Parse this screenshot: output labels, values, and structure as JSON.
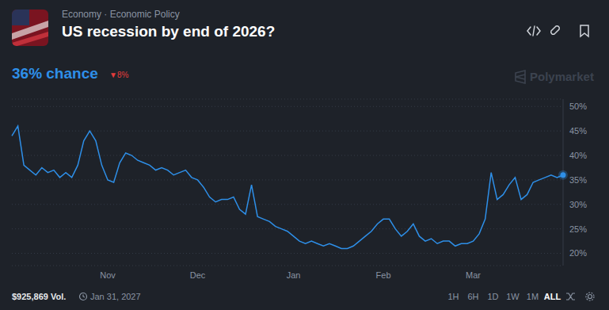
{
  "chart_data": {
    "type": "line",
    "title": "US recession by end of 2026?",
    "subtitle": "Economy · Economic Policy",
    "categories": [
      null,
      null,
      null,
      null,
      null,
      null,
      null,
      null,
      null,
      null,
      null,
      null,
      null,
      null,
      null,
      null,
      "Nov",
      null,
      null,
      null,
      null,
      null,
      null,
      null,
      null,
      null,
      null,
      null,
      null,
      null,
      null,
      "Dec",
      null,
      null,
      null,
      null,
      null,
      null,
      null,
      null,
      null,
      null,
      null,
      null,
      null,
      null,
      null,
      "Jan",
      null,
      null,
      null,
      null,
      null,
      null,
      null,
      null,
      null,
      null,
      null,
      null,
      null,
      null,
      "Feb",
      null,
      null,
      null,
      null,
      null,
      null,
      null,
      null,
      null,
      null,
      null,
      null,
      null,
      null,
      "Mar",
      null,
      null,
      null,
      null,
      null,
      null,
      null,
      null,
      null,
      null,
      null,
      null,
      null,
      null,
      null
    ],
    "values": [
      44,
      46,
      38,
      37,
      36,
      37.5,
      36.5,
      37,
      35.5,
      36.5,
      35.5,
      38,
      43,
      45,
      43,
      38,
      35,
      34.5,
      38.5,
      40.5,
      40,
      39,
      38.5,
      38,
      37,
      37.5,
      37,
      36,
      36.5,
      37,
      35.5,
      35,
      33.5,
      31.5,
      30.5,
      31,
      31,
      31.5,
      29,
      28,
      34,
      27.5,
      27,
      26.5,
      25.5,
      25,
      24.5,
      23.5,
      22.5,
      22,
      22.5,
      22,
      21.5,
      22,
      21.5,
      21,
      21,
      21.5,
      22.5,
      23.5,
      24.5,
      26,
      27,
      27,
      25,
      23.5,
      24.5,
      26,
      23.5,
      22.5,
      23,
      22,
      22.5,
      22.5,
      21.5,
      22,
      22,
      22.5,
      24,
      27,
      36.5,
      31,
      32,
      34,
      35.5,
      31,
      32,
      34.5,
      35,
      35.5,
      36,
      35.5,
      36
    ],
    "color": "#2e8fe8",
    "ylim": [
      17.5,
      51.5
    ],
    "yticks": [
      {
        "value": 20,
        "label": "20%"
      },
      {
        "value": 25,
        "label": "25%"
      },
      {
        "value": 30,
        "label": "30%"
      },
      {
        "value": 35,
        "label": "35%"
      },
      {
        "value": 40,
        "label": "40%"
      },
      {
        "value": 45,
        "label": "45%"
      },
      {
        "value": 50,
        "label": "50%"
      }
    ],
    "grid": true
  },
  "header": {
    "headline": "36% chance",
    "change": "▼8%",
    "brand": "Polymarket"
  },
  "footer": {
    "volume": "$925,869 Vol.",
    "end_date": "Jan 31, 2027",
    "ranges": [
      "1H",
      "6H",
      "1D",
      "1W",
      "1M",
      "ALL"
    ]
  }
}
